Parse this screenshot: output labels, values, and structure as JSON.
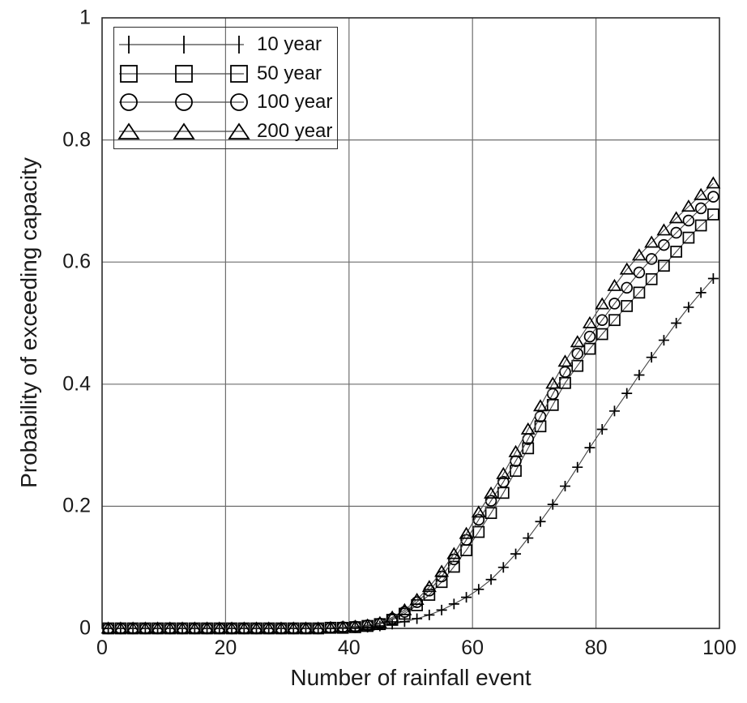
{
  "chart_data": {
    "type": "line",
    "title": "",
    "xlabel": "Number of rainfall event",
    "ylabel": "Probability of exceeding capacity",
    "xlim": [
      0,
      100
    ],
    "ylim": [
      0,
      1
    ],
    "xticks": [
      0,
      20,
      40,
      60,
      80,
      100
    ],
    "xtick_labels": [
      "0",
      "20",
      "40",
      "60",
      "80",
      "100"
    ],
    "yticks": [
      0,
      0.2,
      0.4,
      0.6,
      0.8,
      1
    ],
    "ytick_labels": [
      "0",
      "0.2",
      "0.4",
      "0.6",
      "0.8",
      "1"
    ],
    "grid": true,
    "legend_position": "top-left",
    "colors": {
      "background": "#ffffff",
      "grid": "#6e6e6e",
      "border": "#2b2b2b",
      "line": "#444444",
      "marker": "#000000",
      "text": "#1a1a1a"
    },
    "x": [
      1,
      3,
      5,
      7,
      9,
      11,
      13,
      15,
      17,
      19,
      21,
      23,
      25,
      27,
      29,
      31,
      33,
      35,
      37,
      39,
      41,
      43,
      45,
      47,
      49,
      51,
      53,
      55,
      57,
      59,
      61,
      63,
      65,
      67,
      69,
      71,
      73,
      75,
      77,
      79,
      81,
      83,
      85,
      87,
      89,
      91,
      93,
      95,
      97,
      99
    ],
    "series": [
      {
        "name": "10 year",
        "marker": "plus",
        "values": [
          0,
          0,
          0,
          0,
          0,
          0,
          0,
          0,
          0,
          0,
          0,
          0,
          0,
          0,
          0,
          0,
          0,
          0,
          0,
          0.001,
          0.001,
          0.002,
          0.004,
          0.007,
          0.011,
          0.016,
          0.022,
          0.03,
          0.04,
          0.051,
          0.064,
          0.08,
          0.1,
          0.122,
          0.148,
          0.175,
          0.203,
          0.233,
          0.264,
          0.296,
          0.326,
          0.356,
          0.385,
          0.415,
          0.444,
          0.472,
          0.5,
          0.526,
          0.55,
          0.573
        ]
      },
      {
        "name": "50 year",
        "marker": "square",
        "values": [
          0,
          0,
          0,
          0,
          0,
          0,
          0,
          0,
          0,
          0,
          0,
          0,
          0,
          0,
          0,
          0,
          0,
          0,
          0.001,
          0.001,
          0.002,
          0.004,
          0.007,
          0.014,
          0.024,
          0.038,
          0.055,
          0.076,
          0.101,
          0.128,
          0.158,
          0.189,
          0.222,
          0.258,
          0.295,
          0.331,
          0.366,
          0.402,
          0.43,
          0.458,
          0.482,
          0.505,
          0.528,
          0.55,
          0.572,
          0.594,
          0.617,
          0.64,
          0.66,
          0.678
        ]
      },
      {
        "name": "100 year",
        "marker": "circle",
        "values": [
          0,
          0,
          0,
          0,
          0,
          0,
          0,
          0,
          0,
          0,
          0,
          0,
          0,
          0,
          0,
          0,
          0,
          0,
          0.001,
          0.002,
          0.003,
          0.005,
          0.008,
          0.016,
          0.027,
          0.043,
          0.062,
          0.085,
          0.113,
          0.145,
          0.178,
          0.209,
          0.24,
          0.274,
          0.31,
          0.347,
          0.384,
          0.42,
          0.45,
          0.478,
          0.505,
          0.532,
          0.558,
          0.583,
          0.605,
          0.628,
          0.648,
          0.668,
          0.688,
          0.707
        ]
      },
      {
        "name": "200 year",
        "marker": "triangle",
        "values": [
          0,
          0,
          0,
          0,
          0,
          0,
          0,
          0,
          0,
          0,
          0,
          0,
          0,
          0,
          0,
          0,
          0,
          0,
          0.001,
          0.002,
          0.003,
          0.005,
          0.009,
          0.018,
          0.03,
          0.047,
          0.068,
          0.093,
          0.122,
          0.155,
          0.19,
          0.221,
          0.253,
          0.289,
          0.326,
          0.364,
          0.401,
          0.437,
          0.469,
          0.5,
          0.531,
          0.561,
          0.588,
          0.611,
          0.632,
          0.652,
          0.672,
          0.691,
          0.71,
          0.729
        ]
      }
    ]
  }
}
